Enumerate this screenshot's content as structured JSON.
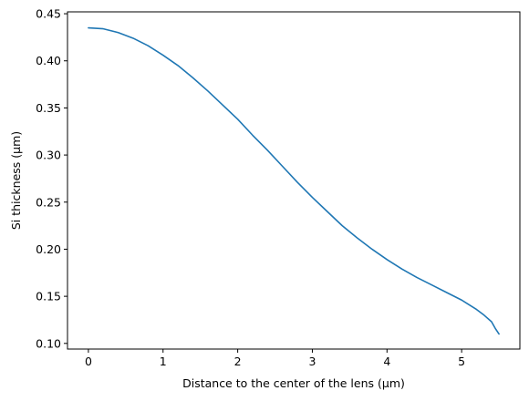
{
  "chart_data": {
    "type": "line",
    "title": "",
    "xlabel": "Distance to the center of the lens (μm)",
    "ylabel": "Si thickness (μm)",
    "xlim": [
      -0.28,
      5.78
    ],
    "ylim": [
      0.094,
      0.452
    ],
    "xticks": [
      0,
      1,
      2,
      3,
      4,
      5
    ],
    "xtick_labels": [
      "0",
      "1",
      "2",
      "3",
      "4",
      "5"
    ],
    "yticks": [
      0.1,
      0.15,
      0.2,
      0.25,
      0.3,
      0.35,
      0.4,
      0.45
    ],
    "ytick_labels": [
      "0.10",
      "0.15",
      "0.20",
      "0.25",
      "0.30",
      "0.35",
      "0.40",
      "0.45"
    ],
    "grid": false,
    "legend": "none",
    "series": [
      {
        "color": "#1f77b4",
        "x": [
          0,
          0.2,
          0.4,
          0.6,
          0.8,
          1.0,
          1.2,
          1.4,
          1.6,
          1.8,
          2.0,
          2.2,
          2.4,
          2.6,
          2.8,
          3.0,
          3.2,
          3.4,
          3.6,
          3.8,
          4.0,
          4.2,
          4.4,
          4.6,
          4.8,
          5.0,
          5.2,
          5.3,
          5.4,
          5.45,
          5.5
        ],
        "y": [
          0.435,
          0.434,
          0.43,
          0.424,
          0.416,
          0.406,
          0.395,
          0.382,
          0.368,
          0.353,
          0.338,
          0.321,
          0.305,
          0.288,
          0.271,
          0.255,
          0.24,
          0.225,
          0.212,
          0.2,
          0.189,
          0.179,
          0.17,
          0.162,
          0.154,
          0.146,
          0.136,
          0.13,
          0.123,
          0.116,
          0.11
        ]
      }
    ]
  }
}
